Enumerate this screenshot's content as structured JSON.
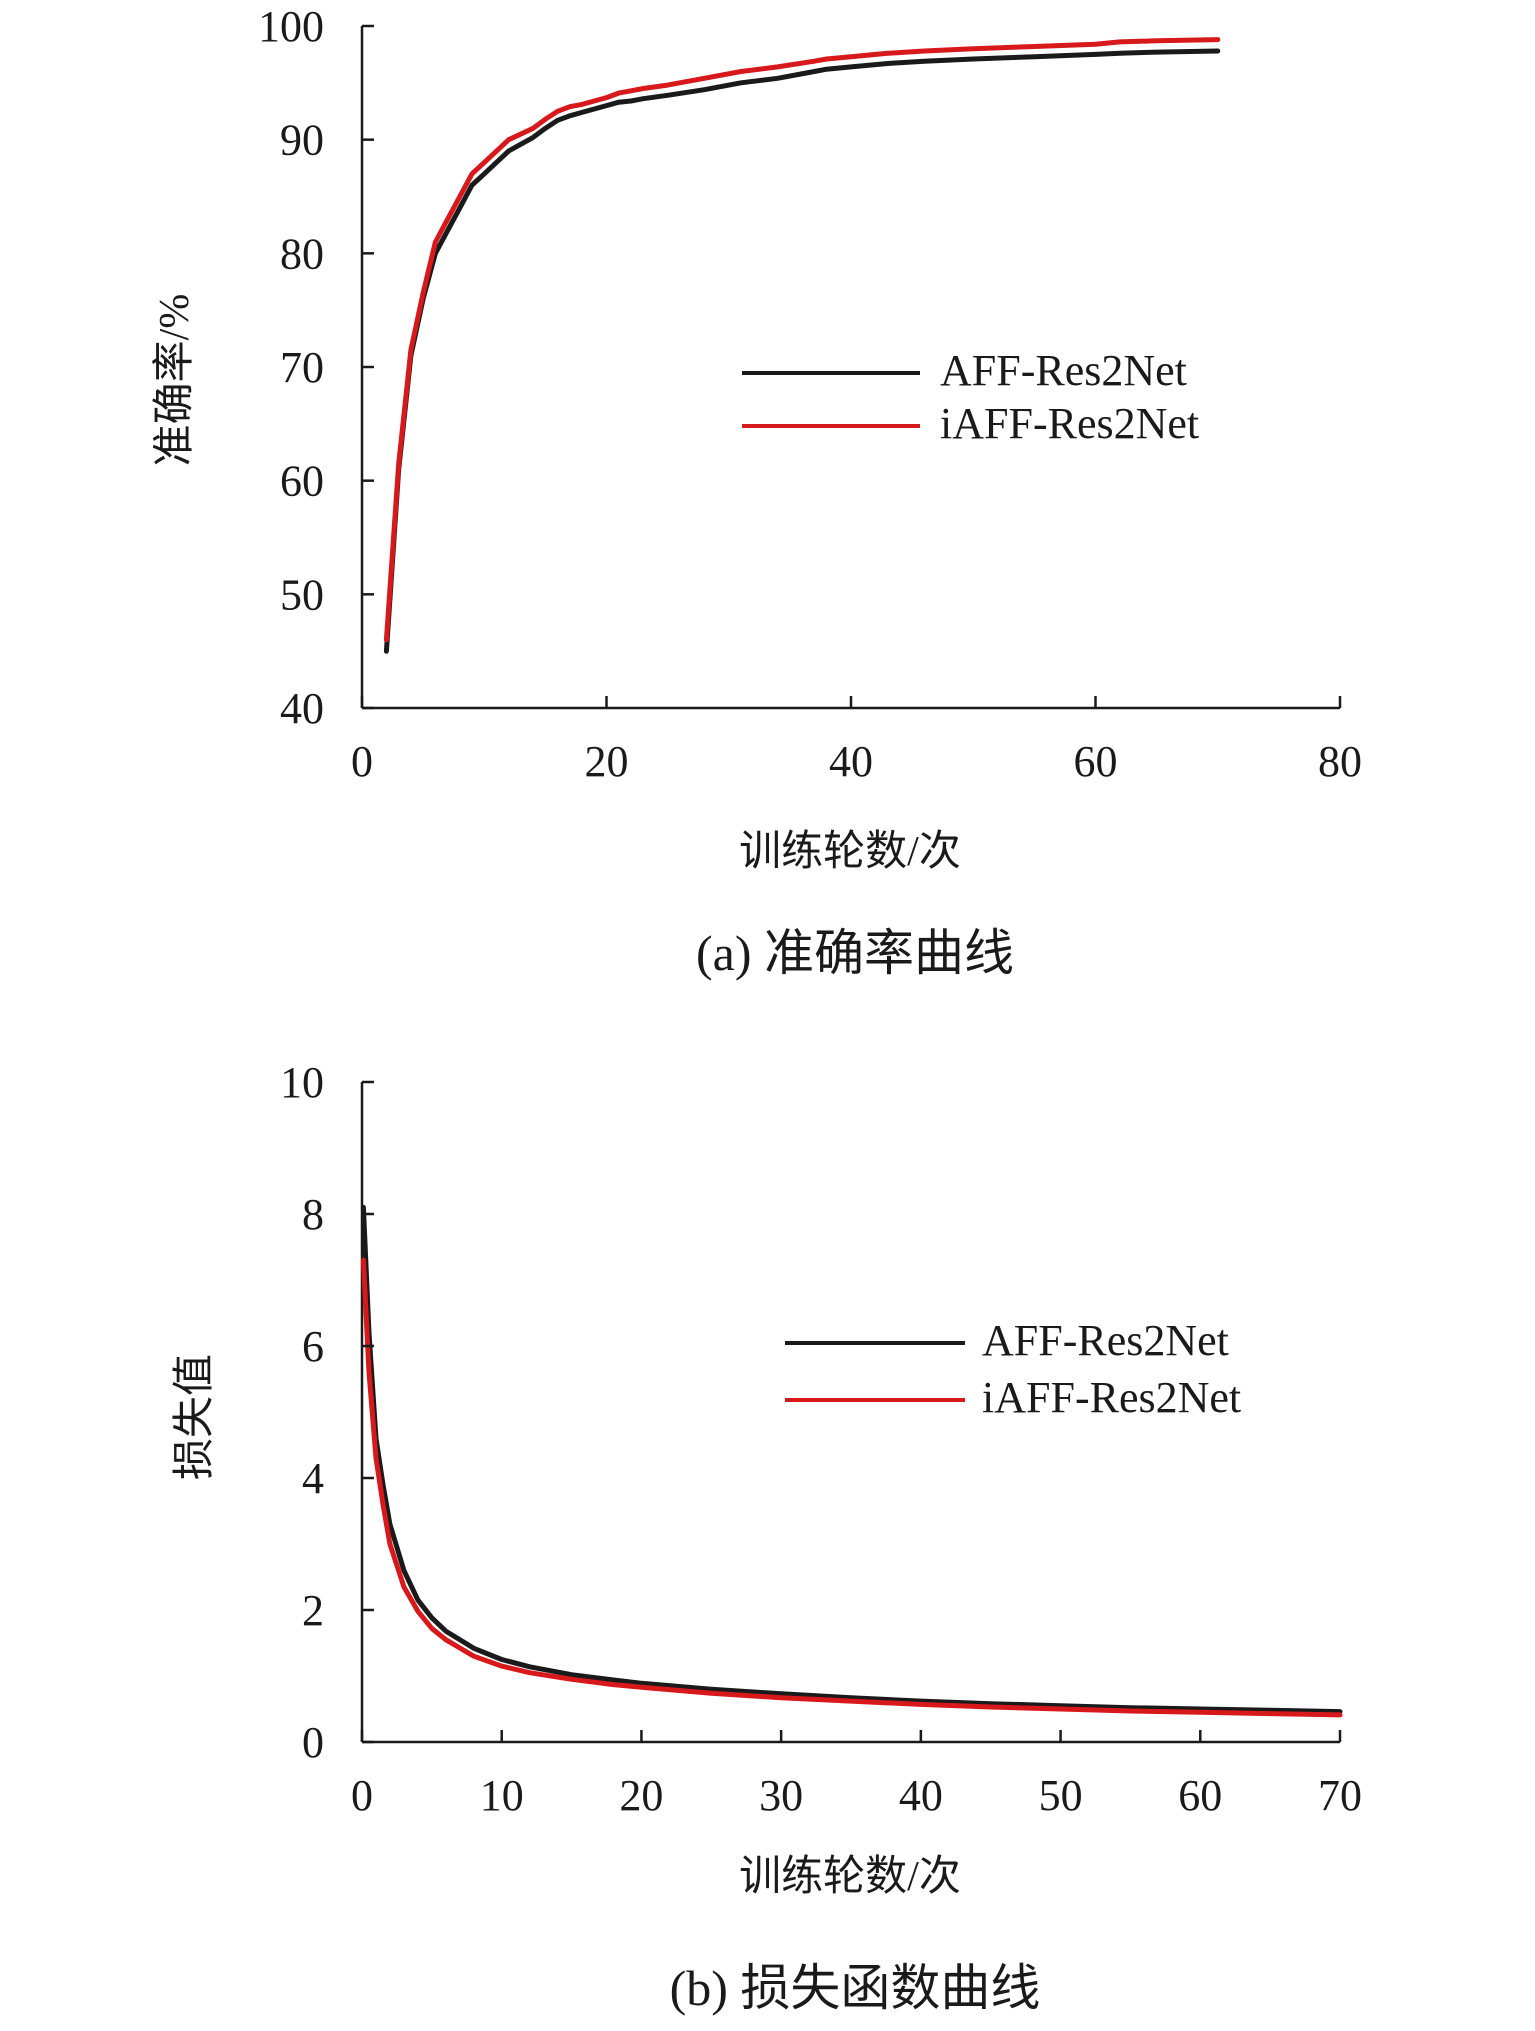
{
  "chart_data": [
    {
      "type": "line",
      "title": "(a) 准确率曲线",
      "xlabel": "训练轮数/次",
      "ylabel": "准确率/%",
      "xlim": [
        0,
        80
      ],
      "ylim": [
        40,
        100
      ],
      "xticks": [
        0,
        20,
        40,
        60,
        80
      ],
      "yticks": [
        40,
        50,
        60,
        70,
        80,
        90,
        100
      ],
      "grid": false,
      "legend_position": "center-right",
      "series": [
        {
          "name": "AFF-Res2Net",
          "color": "#1a1a1a",
          "x": [
            2,
            3,
            4,
            5,
            6,
            7,
            8,
            9,
            10,
            12,
            14,
            15,
            16,
            17,
            18,
            20,
            21,
            22,
            23,
            25,
            28,
            31,
            34,
            37,
            38,
            40,
            43,
            46,
            50,
            55,
            60,
            62,
            65,
            70
          ],
          "y": [
            45,
            61,
            71,
            76,
            80,
            82,
            84,
            86,
            87,
            89,
            90.2,
            91,
            91.7,
            92.1,
            92.4,
            93,
            93.3,
            93.4,
            93.6,
            93.9,
            94.4,
            95,
            95.4,
            96,
            96.2,
            96.4,
            96.7,
            96.9,
            97.1,
            97.3,
            97.5,
            97.6,
            97.7,
            97.8
          ]
        },
        {
          "name": "iAFF-Res2Net",
          "color": "#d7191c",
          "x": [
            2,
            3,
            4,
            5,
            6,
            7,
            8,
            9,
            10,
            12,
            14,
            15,
            16,
            17,
            18,
            20,
            21,
            22,
            23,
            25,
            28,
            31,
            34,
            37,
            38,
            40,
            43,
            46,
            50,
            55,
            60,
            62,
            65,
            70
          ],
          "y": [
            46,
            61.5,
            71.5,
            76.5,
            81,
            83,
            85,
            87,
            88,
            90,
            91,
            91.8,
            92.5,
            92.9,
            93.1,
            93.7,
            94.1,
            94.3,
            94.5,
            94.8,
            95.4,
            96,
            96.4,
            96.9,
            97.1,
            97.3,
            97.6,
            97.8,
            98,
            98.2,
            98.4,
            98.6,
            98.7,
            98.8
          ]
        }
      ]
    },
    {
      "type": "line",
      "title": "(b) 损失函数曲线",
      "xlabel": "训练轮数/次",
      "ylabel": "损失值",
      "xlim": [
        0,
        70
      ],
      "ylim": [
        0,
        10
      ],
      "xticks": [
        0,
        10,
        20,
        30,
        40,
        50,
        60,
        70
      ],
      "yticks": [
        0,
        2,
        4,
        6,
        8,
        10
      ],
      "grid": false,
      "legend_position": "center-right",
      "series": [
        {
          "name": "AFF-Res2Net",
          "color": "#1a1a1a",
          "x": [
            0.1,
            0.5,
            1,
            1.5,
            2,
            3,
            4,
            5,
            6,
            8,
            10,
            12,
            15,
            18,
            20,
            25,
            30,
            35,
            40,
            45,
            50,
            55,
            60,
            65,
            70
          ],
          "y": [
            8.1,
            6.2,
            4.6,
            3.9,
            3.3,
            2.6,
            2.15,
            1.88,
            1.68,
            1.42,
            1.25,
            1.14,
            1.02,
            0.94,
            0.89,
            0.8,
            0.73,
            0.67,
            0.62,
            0.58,
            0.55,
            0.52,
            0.5,
            0.48,
            0.46
          ]
        },
        {
          "name": "iAFF-Res2Net",
          "color": "#d7191c",
          "x": [
            0.1,
            0.5,
            1,
            1.5,
            2,
            3,
            4,
            5,
            6,
            8,
            10,
            12,
            15,
            18,
            20,
            25,
            30,
            35,
            40,
            45,
            50,
            55,
            60,
            65,
            70
          ],
          "y": [
            7.3,
            5.6,
            4.3,
            3.6,
            3.0,
            2.35,
            1.98,
            1.72,
            1.55,
            1.3,
            1.15,
            1.05,
            0.95,
            0.87,
            0.83,
            0.74,
            0.67,
            0.62,
            0.57,
            0.53,
            0.5,
            0.47,
            0.45,
            0.43,
            0.41
          ]
        }
      ]
    }
  ]
}
